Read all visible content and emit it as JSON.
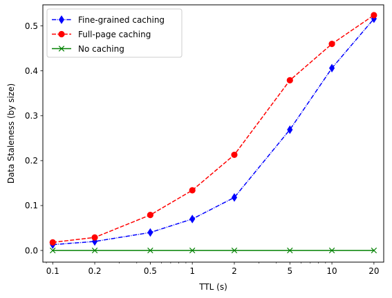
{
  "chart_data": {
    "type": "line",
    "title": "",
    "xlabel": "TTL (s)",
    "ylabel": "Data Staleness (by size)",
    "xscale": "log",
    "x": [
      0.1,
      0.2,
      0.5,
      1,
      2,
      5,
      10,
      20
    ],
    "xtick_labels": [
      "0.1",
      "0.2",
      "0.5",
      "1",
      "2",
      "5",
      "10",
      "20"
    ],
    "xlim": [
      0.085,
      23.5
    ],
    "ylim": [
      -0.026,
      0.547
    ],
    "yticks": [
      0.0,
      0.1,
      0.2,
      0.3,
      0.4,
      0.5
    ],
    "ytick_labels": [
      "0.0",
      "0.1",
      "0.2",
      "0.3",
      "0.4",
      "0.5"
    ],
    "grid": false,
    "legend_position": "top-left",
    "series": [
      {
        "name": "Fine-grained caching",
        "color": "#0000ff",
        "linestyle": "dashdot",
        "marker": "diamond",
        "values": [
          0.013,
          0.02,
          0.04,
          0.07,
          0.118,
          0.269,
          0.406,
          0.516
        ]
      },
      {
        "name": "Full-page caching",
        "color": "#ff0000",
        "linestyle": "dashed",
        "marker": "circle",
        "values": [
          0.018,
          0.029,
          0.079,
          0.134,
          0.213,
          0.379,
          0.46,
          0.524
        ]
      },
      {
        "name": "No caching",
        "color": "#008000",
        "linestyle": "solid",
        "marker": "x",
        "values": [
          0.0,
          0.0,
          0.0,
          0.0,
          0.0,
          0.0,
          0.0,
          0.0
        ]
      }
    ]
  }
}
